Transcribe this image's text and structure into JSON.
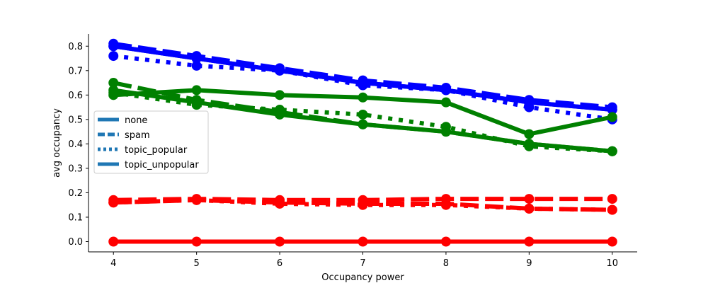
{
  "chart_data": {
    "type": "line",
    "xlabel": "Occupancy power",
    "ylabel": "avg occupancy",
    "xlim": [
      3.7,
      10.3
    ],
    "ylim": [
      -0.042,
      0.85
    ],
    "x_ticks": [
      4,
      5,
      6,
      7,
      8,
      9,
      10
    ],
    "y_ticks": [
      0.0,
      0.1,
      0.2,
      0.3,
      0.4,
      0.5,
      0.6,
      0.7,
      0.8
    ],
    "x_tick_labels": [
      "4",
      "5",
      "6",
      "7",
      "8",
      "9",
      "10"
    ],
    "y_tick_labels": [
      "0.0",
      "0.1",
      "0.2",
      "0.3",
      "0.4",
      "0.5",
      "0.6",
      "0.7",
      "0.8"
    ],
    "legend": {
      "placement": "center-left",
      "entries": [
        {
          "label": "none",
          "style": "solid"
        },
        {
          "label": "spam",
          "style": "dashed"
        },
        {
          "label": "topic_popular",
          "style": "dotted"
        },
        {
          "label": "topic_unpopular",
          "style": "solid"
        }
      ],
      "color": "#1f77b4"
    },
    "x": [
      4,
      5,
      6,
      7,
      8,
      9,
      10
    ],
    "series": [
      {
        "color": "#0000ff",
        "style": "solid",
        "values": [
          0.8,
          0.75,
          0.7,
          0.65,
          0.62,
          0.57,
          0.54
        ]
      },
      {
        "color": "#0000ff",
        "style": "dashed",
        "values": [
          0.81,
          0.76,
          0.71,
          0.66,
          0.63,
          0.58,
          0.55
        ]
      },
      {
        "color": "#0000ff",
        "style": "dotted",
        "values": [
          0.76,
          0.72,
          0.7,
          0.64,
          0.62,
          0.55,
          0.5
        ]
      },
      {
        "color": "#0000ff",
        "style": "solid",
        "values": [
          0.8,
          0.75,
          0.7,
          0.65,
          0.62,
          0.57,
          0.54
        ]
      },
      {
        "color": "#008000",
        "style": "solid",
        "values": [
          0.6,
          0.62,
          0.6,
          0.59,
          0.57,
          0.44,
          0.51
        ]
      },
      {
        "color": "#008000",
        "style": "dashed",
        "values": [
          0.65,
          0.58,
          0.53,
          0.48,
          0.45,
          0.4,
          0.37
        ]
      },
      {
        "color": "#008000",
        "style": "dotted",
        "values": [
          0.61,
          0.56,
          0.54,
          0.52,
          0.47,
          0.39,
          0.37
        ]
      },
      {
        "color": "#008000",
        "style": "solid",
        "values": [
          0.62,
          0.57,
          0.52,
          0.48,
          0.45,
          0.4,
          0.37
        ]
      },
      {
        "color": "#ff0000",
        "style": "solid",
        "values": [
          0.0,
          0.0,
          0.0,
          0.0,
          0.0,
          0.0,
          0.0
        ]
      },
      {
        "color": "#ff0000",
        "style": "dashed",
        "values": [
          0.17,
          0.175,
          0.17,
          0.17,
          0.175,
          0.175,
          0.175
        ]
      },
      {
        "color": "#ff0000",
        "style": "dotted",
        "values": [
          0.16,
          0.17,
          0.155,
          0.15,
          0.15,
          0.135,
          0.13
        ]
      },
      {
        "color": "#ff0000",
        "style": "dashed",
        "values": [
          0.16,
          0.17,
          0.16,
          0.155,
          0.155,
          0.135,
          0.13
        ]
      }
    ]
  }
}
